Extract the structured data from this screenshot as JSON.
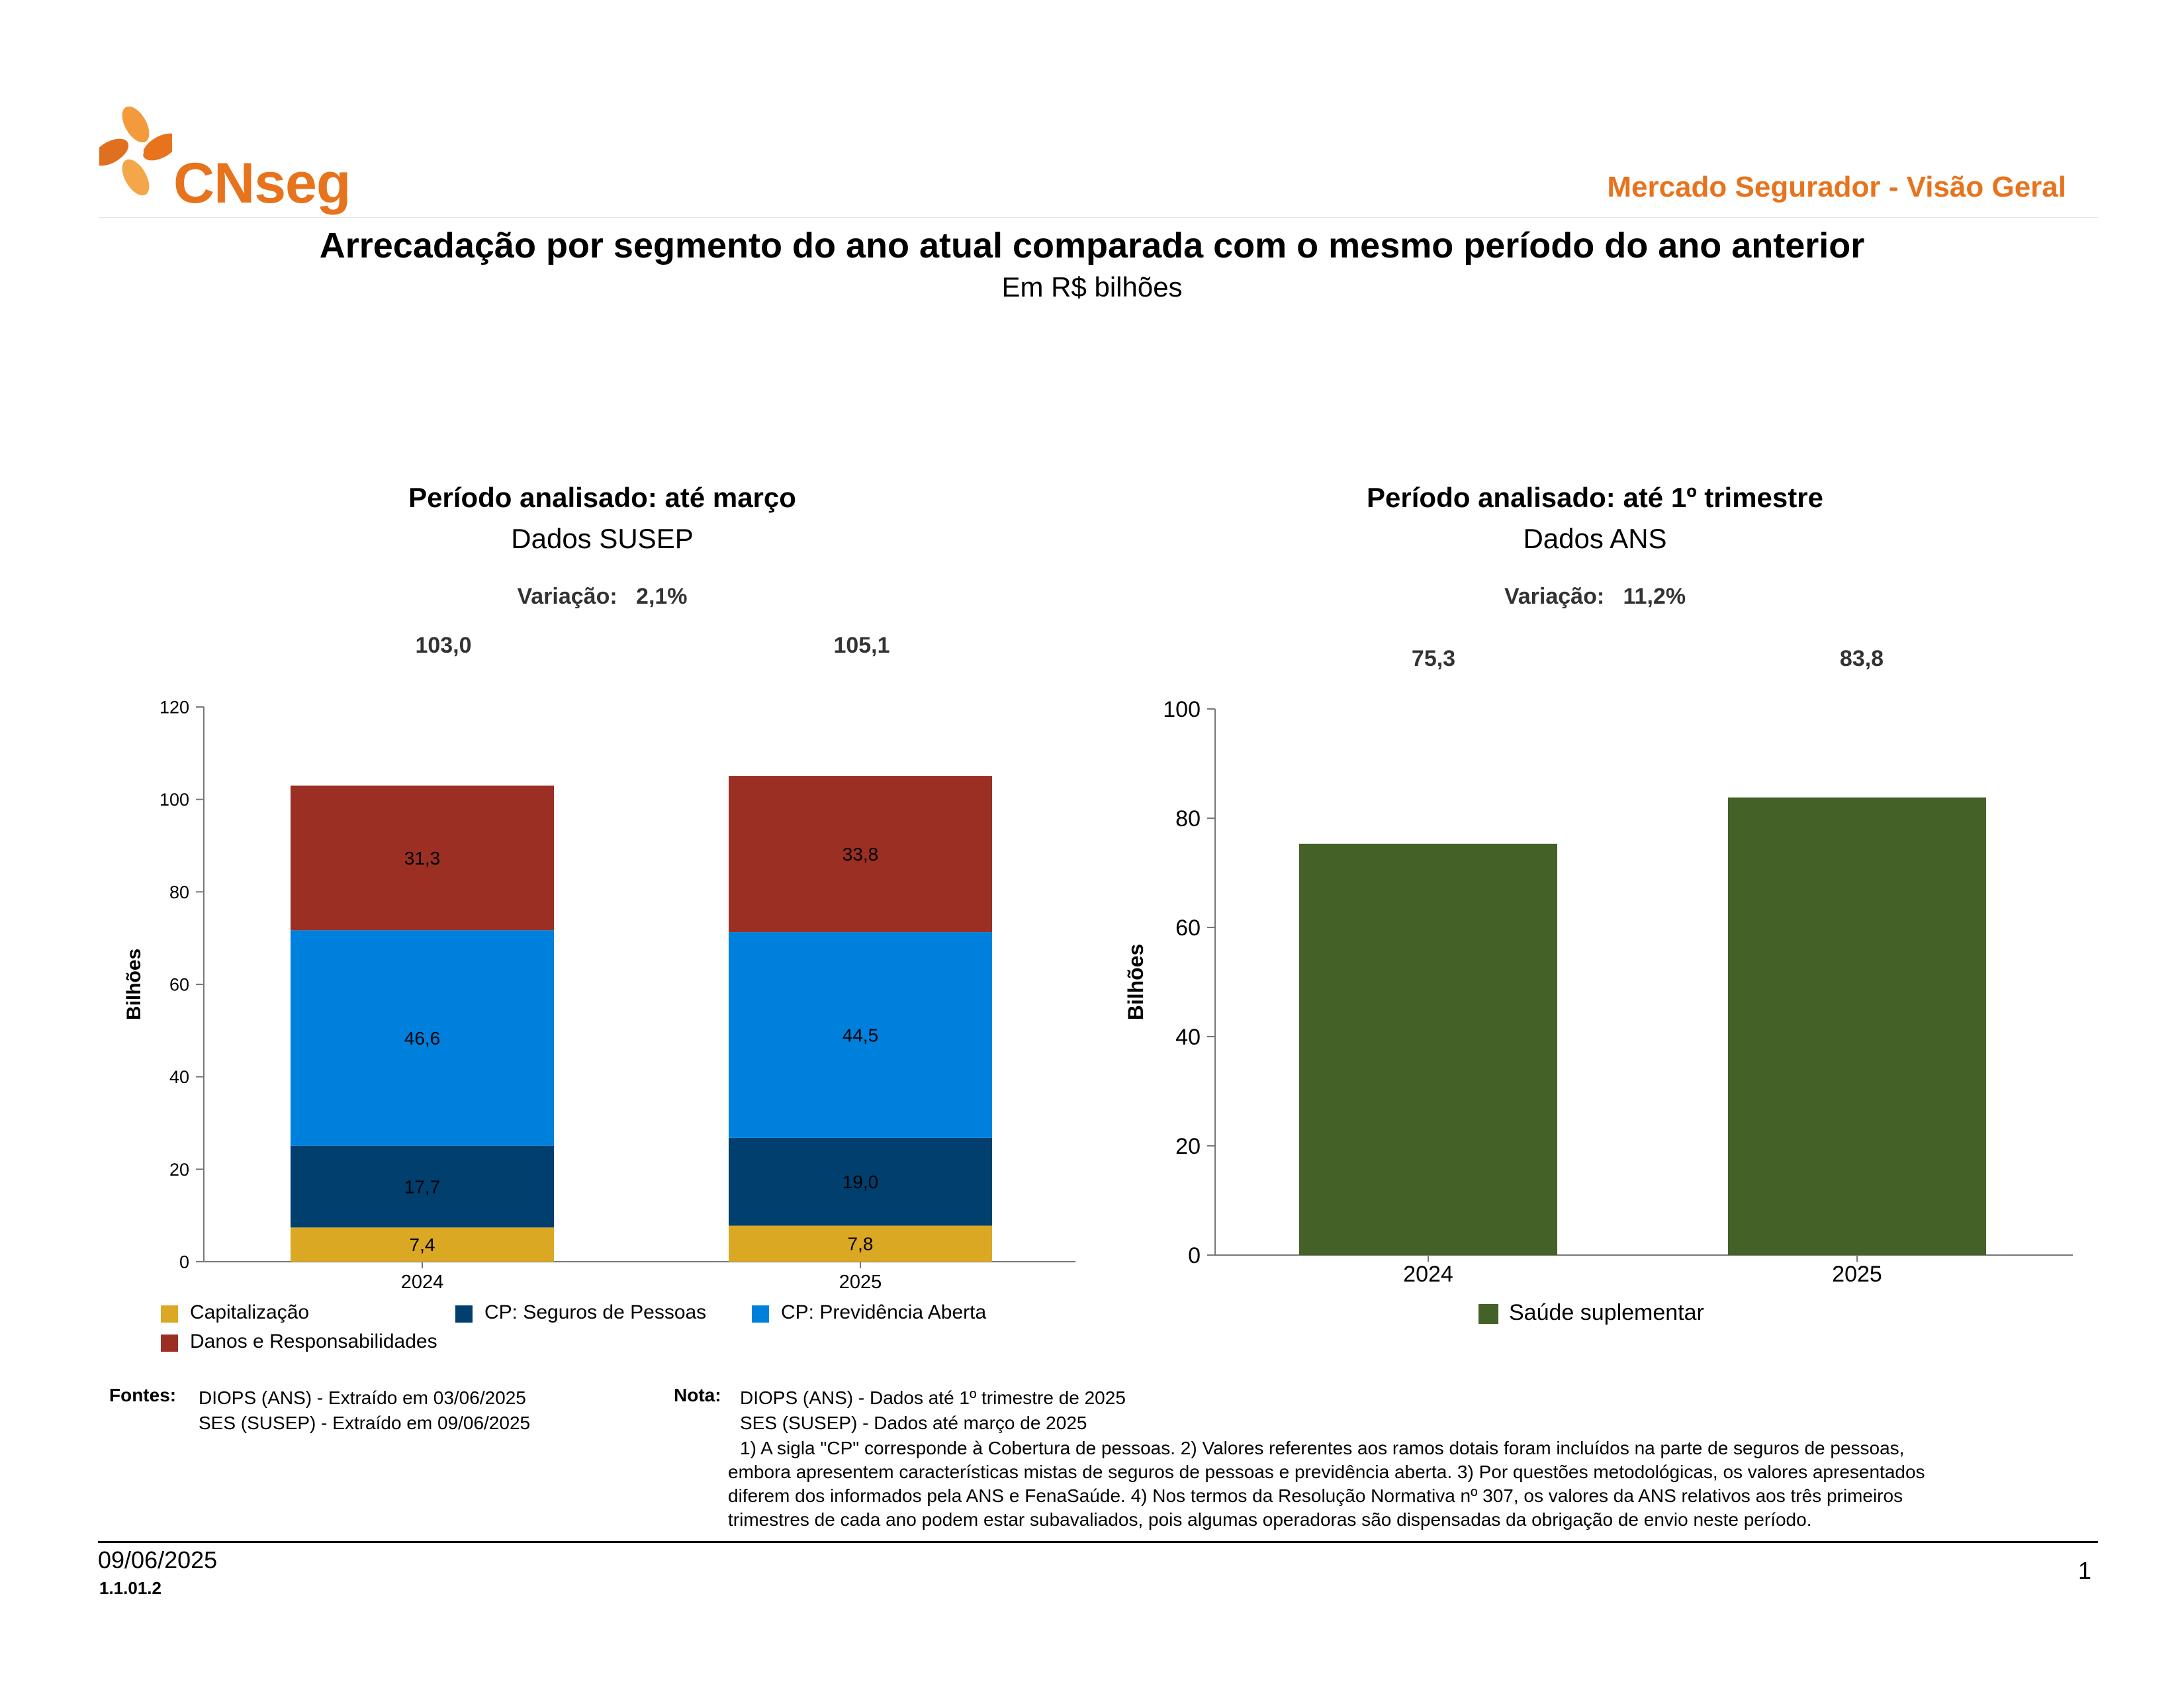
{
  "header": {
    "logo_text": "CNseg",
    "report_name": "Mercado Segurador - Visão Geral",
    "colors": {
      "brand": "#e8731d"
    }
  },
  "page_title": "Arrecadação por segmento do ano atual comparada com o mesmo período do ano anterior",
  "page_subtitle": "Em R$ bilhões",
  "left_panel": {
    "title": "Período analisado: até março",
    "source": "Dados SUSEP",
    "variation_label": "Variação:",
    "variation_value": "2,1%",
    "totals": [
      "103,0",
      "105,1"
    ]
  },
  "right_panel": {
    "title": "Período analisado: até 1º trimestre",
    "source": "Dados ANS",
    "variation_label": "Variação:",
    "variation_value": "11,2%",
    "totals": [
      "75,3",
      "83,8"
    ]
  },
  "chart_data": [
    {
      "type": "bar",
      "stacked": true,
      "categories": [
        "2024",
        "2025"
      ],
      "ylabel": "Bilhões",
      "ylim": [
        0,
        120
      ],
      "yticks": [
        "0",
        "20",
        "40",
        "60",
        "80",
        "100",
        "120"
      ],
      "series": [
        {
          "name": "Capitalização",
          "values": [
            7.4,
            7.8
          ],
          "labels": [
            "7,4",
            "7,8"
          ],
          "color": "#dba823"
        },
        {
          "name": "CP: Seguros de Pessoas",
          "values": [
            17.7,
            19.0
          ],
          "labels": [
            "17,7",
            "19,0"
          ],
          "color": "#003f6e"
        },
        {
          "name": "CP: Previdência Aberta",
          "values": [
            46.6,
            44.5
          ],
          "labels": [
            "46,6",
            "44,5"
          ],
          "color": "#0080dd"
        },
        {
          "name": "Danos e Responsabilidades",
          "values": [
            31.3,
            33.8
          ],
          "labels": [
            "31,3",
            "33,8"
          ],
          "color": "#9b2f24"
        }
      ],
      "legend": "bottom"
    },
    {
      "type": "bar",
      "categories": [
        "2024",
        "2025"
      ],
      "ylabel": "Bilhões",
      "ylim": [
        0,
        100
      ],
      "yticks": [
        "0",
        "20",
        "40",
        "60",
        "80",
        "100"
      ],
      "series": [
        {
          "name": "Saúde suplementar",
          "values": [
            75.3,
            83.8
          ],
          "color": "#446127"
        }
      ],
      "legend": "bottom"
    }
  ],
  "footer": {
    "sources_label": "Fontes:",
    "sources": [
      "DIOPS (ANS) -  Extraído em 03/06/2025",
      "SES (SUSEP) -  Extraído em 09/06/2025"
    ],
    "note_label": "Nota:",
    "note_lines": [
      "DIOPS (ANS) - Dados até 1º trimestre de 2025",
      "SES (SUSEP) - Dados até março de 2025"
    ],
    "note_text": [
      "1) A sigla \"CP\" corresponde à Cobertura de pessoas. 2) Valores referentes aos ramos dotais foram incluídos na parte de seguros de pessoas,",
      "embora apresentem características mistas de seguros de pessoas e previdência aberta. 3) Por questões metodológicas, os valores apresentados",
      "diferem dos informados pela ANS e FenaSaúde. 4) Nos termos da Resolução Normativa nº 307, os valores da ANS relativos aos três primeiros",
      "trimestres de cada ano podem estar subavaliados, pois algumas operadoras são dispensadas da obrigação de envio neste período."
    ],
    "date": "09/06/2025",
    "code": "1.1.01.2",
    "page_number": "1"
  }
}
